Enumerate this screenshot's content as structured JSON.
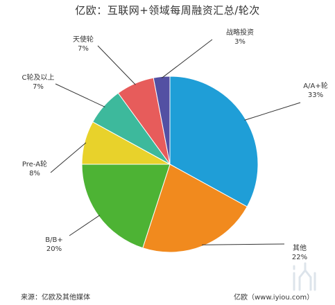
{
  "chart_data": {
    "type": "pie",
    "title": "亿欧：互联网+领域每周融资汇总/轮次",
    "slices": [
      {
        "label": "A/A+轮",
        "value": 33,
        "value_text": "33%",
        "color": "#1f9ed7"
      },
      {
        "label": "其他",
        "value": 22,
        "value_text": "22%",
        "color": "#f18a1e"
      },
      {
        "label": "B/B+",
        "value": 20,
        "value_text": "20%",
        "color": "#4db334"
      },
      {
        "label": "Pre-A轮",
        "value": 8,
        "value_text": "8%",
        "color": "#e8d22b"
      },
      {
        "label": "C轮及以上",
        "value": 7,
        "value_text": "7%",
        "color": "#3db99c"
      },
      {
        "label": "天使轮",
        "value": 7,
        "value_text": "7%",
        "color": "#e75c5b"
      },
      {
        "label": "战略投资",
        "value": 3,
        "value_text": "3%",
        "color": "#5350a3"
      }
    ],
    "start": "12 o'clock",
    "direction": "clockwise",
    "legend": "none (labels beside slices with leader lines)"
  },
  "footer": {
    "source": "来源：亿欧及其他媒体",
    "brand": "亿欧（www.iyiou.com）"
  },
  "watermark_icon": "iyiou-logo-icon"
}
